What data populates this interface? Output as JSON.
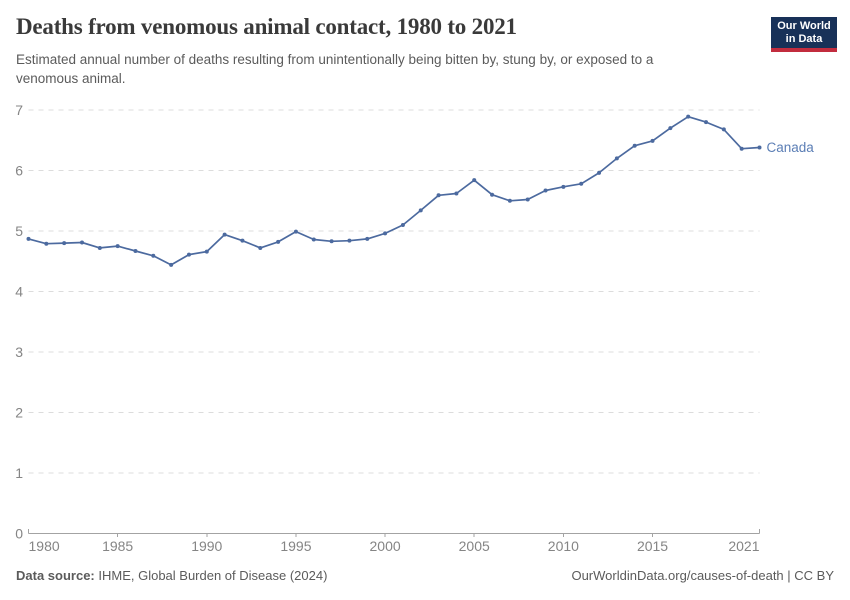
{
  "header": {
    "title": "Deaths from venomous animal contact, 1980 to 2021",
    "subtitle_lines": [
      "Estimated annual number of deaths resulting from unintentionally being bitten by, stung by, or exposed to a",
      "venomous animal."
    ]
  },
  "logo": {
    "line1": "Our World",
    "line2": "in Data",
    "bg_color": "#183158",
    "bar_color": "#C22C3E"
  },
  "chart_data": {
    "type": "line",
    "title": "Deaths from venomous animal contact, 1980 to 2021",
    "xlabel": "",
    "ylabel": "",
    "ylim": [
      0,
      7
    ],
    "y_ticks": [
      0,
      1,
      2,
      3,
      4,
      5,
      6,
      7
    ],
    "x_ticks": [
      1980,
      1985,
      1990,
      1995,
      2000,
      2005,
      2010,
      2015,
      2021
    ],
    "grid": "dashed-horizontal",
    "legend_position": "end-of-line-label",
    "series": [
      {
        "name": "Canada",
        "color": "#4C6A9F",
        "label_color": "#5B7EB5",
        "x": [
          1980,
          1981,
          1982,
          1983,
          1984,
          1985,
          1986,
          1987,
          1988,
          1989,
          1990,
          1991,
          1992,
          1993,
          1994,
          1995,
          1996,
          1997,
          1998,
          1999,
          2000,
          2001,
          2002,
          2003,
          2004,
          2005,
          2006,
          2007,
          2008,
          2009,
          2010,
          2011,
          2012,
          2013,
          2014,
          2015,
          2016,
          2017,
          2018,
          2019,
          2020,
          2021
        ],
        "values": [
          4.87,
          4.79,
          4.8,
          4.81,
          4.72,
          4.75,
          4.67,
          4.59,
          4.44,
          4.61,
          4.66,
          4.94,
          4.84,
          4.72,
          4.82,
          4.99,
          4.86,
          4.83,
          4.84,
          4.87,
          4.96,
          5.1,
          5.34,
          5.59,
          5.62,
          5.84,
          5.6,
          5.5,
          5.52,
          5.67,
          5.73,
          5.78,
          5.96,
          6.2,
          6.41,
          6.49,
          6.7,
          6.89,
          6.8,
          6.68,
          6.36,
          6.38
        ]
      }
    ]
  },
  "footer": {
    "source_label": "Data source:",
    "source_text": " IHME, Global Burden of Disease (2024)",
    "credit": "OurWorldinData.org/causes-of-death | CC BY"
  },
  "colors": {
    "title_text": "#3A3A3A",
    "subtitle_text": "#5B5B5B",
    "grid_line": "#DCDCDC",
    "axis_line": "#A3A3A3",
    "tick_text": "#858585",
    "footer_text": "#5B5B5B"
  }
}
